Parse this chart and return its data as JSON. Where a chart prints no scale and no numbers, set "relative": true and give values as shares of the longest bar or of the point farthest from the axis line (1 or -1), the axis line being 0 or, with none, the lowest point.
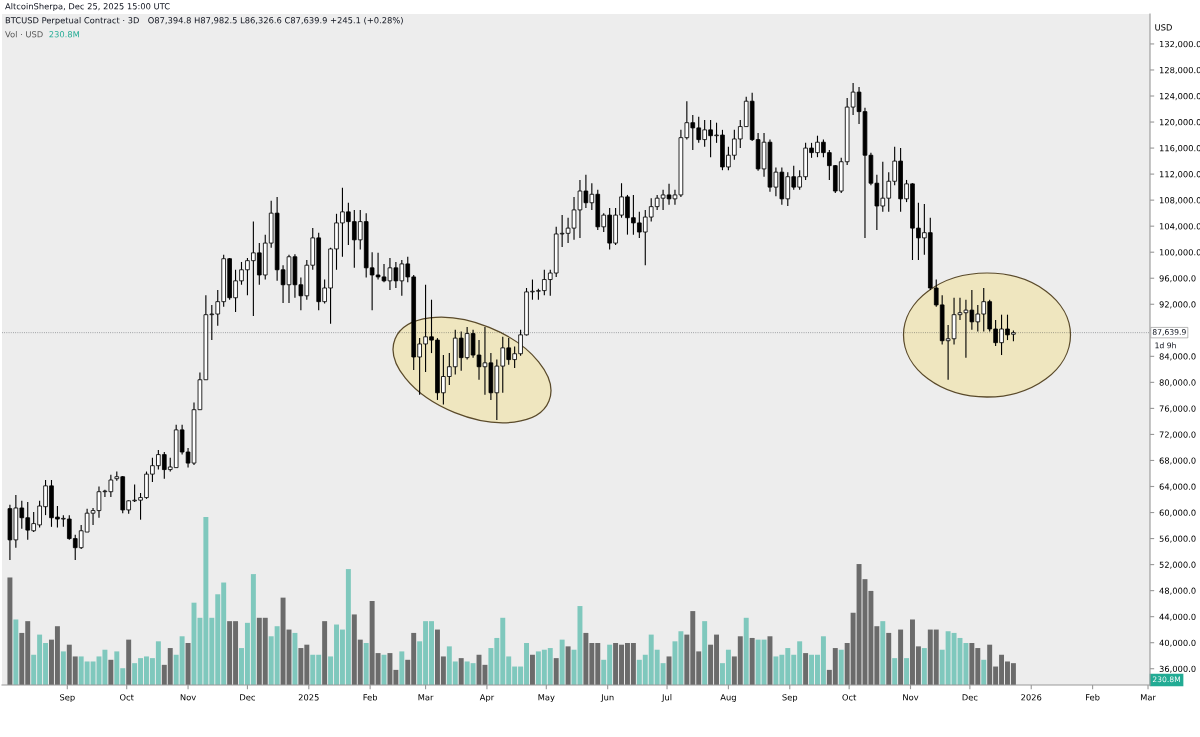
{
  "chart_data": [
    {
      "type": "candlestick",
      "title": "BTCUSD Perpetual Contract · 3D",
      "subtitle": "O87,394.8 H87,982.5 L86,326.6 C87,639.9 +245.1 (+0.28%)",
      "ylabel": "USD",
      "annotations": [
        "AltcoinSherpa, Dec 25, 2025 15:00 UTC",
        "1d 9h"
      ],
      "ref_lines": [
        {
          "axis": "y",
          "value": 87639.9,
          "label": "87,639.9",
          "color": "#131722",
          "line_style": "dotted"
        }
      ],
      "color": "#000000",
      "x": [
        "2024-08-03",
        "2024-08-06",
        "2024-08-09",
        "2024-08-12",
        "2024-08-15",
        "2024-08-18",
        "2024-08-21",
        "2024-08-24",
        "2024-08-27",
        "2024-08-30",
        "2024-09-02",
        "2024-09-05",
        "2024-09-08",
        "2024-09-11",
        "2024-09-14",
        "2024-09-17",
        "2024-09-20",
        "2024-09-23",
        "2024-09-26",
        "2024-09-29",
        "2024-10-02",
        "2024-10-05",
        "2024-10-08",
        "2024-10-11",
        "2024-10-14",
        "2024-10-17",
        "2024-10-20",
        "2024-10-23",
        "2024-10-26",
        "2024-10-29",
        "2024-11-01",
        "2024-11-04",
        "2024-11-07",
        "2024-11-10",
        "2024-11-13",
        "2024-11-16",
        "2024-11-19",
        "2024-11-22",
        "2024-11-25",
        "2024-11-28",
        "2024-12-01",
        "2024-12-04",
        "2024-12-07",
        "2024-12-10",
        "2024-12-13",
        "2024-12-16",
        "2024-12-19",
        "2024-12-22",
        "2024-12-25",
        "2024-12-28",
        "2024-12-31",
        "2025-01-03",
        "2025-01-06",
        "2025-01-09",
        "2025-01-12",
        "2025-01-15",
        "2025-01-18",
        "2025-01-21",
        "2025-01-24",
        "2025-01-27",
        "2025-01-30",
        "2025-02-02",
        "2025-02-05",
        "2025-02-08",
        "2025-02-11",
        "2025-02-14",
        "2025-02-17",
        "2025-02-20",
        "2025-02-23",
        "2025-02-26",
        "2025-03-01",
        "2025-03-04",
        "2025-03-07",
        "2025-03-10",
        "2025-03-13",
        "2025-03-16",
        "2025-03-19",
        "2025-03-22",
        "2025-03-25",
        "2025-03-28",
        "2025-03-31",
        "2025-04-03",
        "2025-04-06",
        "2025-04-09",
        "2025-04-12",
        "2025-04-15",
        "2025-04-18",
        "2025-04-21",
        "2025-04-24",
        "2025-04-27",
        "2025-04-30",
        "2025-05-03",
        "2025-05-06",
        "2025-05-09",
        "2025-05-12",
        "2025-05-15",
        "2025-05-18",
        "2025-05-21",
        "2025-05-24",
        "2025-05-27",
        "2025-05-30",
        "2025-06-02",
        "2025-06-05",
        "2025-06-08",
        "2025-06-11",
        "2025-06-14",
        "2025-06-17",
        "2025-06-20",
        "2025-06-23",
        "2025-06-26",
        "2025-06-29",
        "2025-07-02",
        "2025-07-05",
        "2025-07-08",
        "2025-07-11",
        "2025-07-14",
        "2025-07-17",
        "2025-07-20",
        "2025-07-23",
        "2025-07-26",
        "2025-07-29",
        "2025-08-01",
        "2025-08-04",
        "2025-08-07",
        "2025-08-10",
        "2025-08-13",
        "2025-08-16",
        "2025-08-19",
        "2025-08-22",
        "2025-08-25",
        "2025-08-28",
        "2025-08-31",
        "2025-09-03",
        "2025-09-06",
        "2025-09-09",
        "2025-09-12",
        "2025-09-15",
        "2025-09-18",
        "2025-09-21",
        "2025-09-24",
        "2025-09-27",
        "2025-09-30",
        "2025-10-03",
        "2025-10-06",
        "2025-10-09",
        "2025-10-12",
        "2025-10-15",
        "2025-10-18",
        "2025-10-21",
        "2025-10-24",
        "2025-10-27",
        "2025-10-30",
        "2025-11-02",
        "2025-11-05",
        "2025-11-08",
        "2025-11-11",
        "2025-11-14",
        "2025-11-17",
        "2025-11-20",
        "2025-11-23",
        "2025-11-26",
        "2025-11-29",
        "2025-12-02",
        "2025-12-05",
        "2025-12-08",
        "2025-12-11",
        "2025-12-14",
        "2025-12-17",
        "2025-12-20",
        "2025-12-23"
      ],
      "ohlc": [
        [
          60600,
          61200,
          52700,
          55800
        ],
        [
          55800,
          62700,
          54600,
          60700
        ],
        [
          60700,
          61800,
          57500,
          59200
        ],
        [
          59200,
          61600,
          55800,
          57300
        ],
        [
          57200,
          60100,
          57000,
          58300
        ],
        [
          58100,
          61800,
          57700,
          61000
        ],
        [
          60900,
          65000,
          59600,
          64100
        ],
        [
          64100,
          65000,
          57800,
          59200
        ],
        [
          59300,
          61000,
          57700,
          59000
        ],
        [
          59000,
          59600,
          57800,
          59100
        ],
        [
          59000,
          59600,
          55800,
          56000
        ],
        [
          56000,
          56600,
          52700,
          54600
        ],
        [
          54600,
          58100,
          54400,
          57200
        ],
        [
          57000,
          60600,
          57000,
          59900
        ],
        [
          59900,
          60700,
          58100,
          60300
        ],
        [
          60300,
          64000,
          59200,
          63200
        ],
        [
          63200,
          63500,
          62400,
          63300
        ],
        [
          63200,
          65800,
          62400,
          65000
        ],
        [
          65200,
          66300,
          64900,
          65500
        ],
        [
          65500,
          65600,
          59900,
          60400
        ],
        [
          60400,
          61900,
          59800,
          61800
        ],
        [
          61800,
          64300,
          61600,
          61900
        ],
        [
          61900,
          63000,
          58900,
          62300
        ],
        [
          62300,
          66300,
          62100,
          65900
        ],
        [
          65900,
          68400,
          64700,
          67200
        ],
        [
          67200,
          69600,
          66600,
          68900
        ],
        [
          68900,
          69300,
          65200,
          66600
        ],
        [
          66600,
          68400,
          66300,
          67000
        ],
        [
          66900,
          73500,
          66900,
          72700
        ],
        [
          72700,
          73500,
          68900,
          69300
        ],
        [
          69300,
          69900,
          66900,
          67600
        ],
        [
          67600,
          76900,
          67300,
          75800
        ],
        [
          75800,
          81500,
          75800,
          80400
        ],
        [
          80400,
          93400,
          80400,
          90400
        ],
        [
          90400,
          91900,
          86500,
          90500
        ],
        [
          90500,
          94200,
          88700,
          92400
        ],
        [
          92400,
          99600,
          91600,
          99000
        ],
        [
          99000,
          99100,
          92700,
          93000
        ],
        [
          93000,
          97300,
          90800,
          95600
        ],
        [
          95600,
          98500,
          95000,
          97300
        ],
        [
          97300,
          99100,
          93400,
          98700
        ],
        [
          98700,
          104700,
          90200,
          99900
        ],
        [
          99900,
          101400,
          95000,
          96500
        ],
        [
          96500,
          102700,
          95800,
          101400
        ],
        [
          101400,
          107900,
          100700,
          106000
        ],
        [
          106000,
          108500,
          95600,
          97300
        ],
        [
          97300,
          98000,
          92200,
          95000
        ],
        [
          95000,
          99600,
          92200,
          99300
        ],
        [
          99300,
          99700,
          93000,
          95000
        ],
        [
          95000,
          96100,
          91100,
          93300
        ],
        [
          93300,
          98800,
          92700,
          98000
        ],
        [
          98000,
          103700,
          97300,
          102200
        ],
        [
          102200,
          103000,
          91100,
          92400
        ],
        [
          92400,
          95800,
          92100,
          94500
        ],
        [
          94500,
          100700,
          89000,
          100500
        ],
        [
          100500,
          105900,
          97300,
          104500
        ],
        [
          104500,
          109900,
          99300,
          106200
        ],
        [
          106200,
          107600,
          101100,
          104700
        ],
        [
          104700,
          106500,
          97600,
          101900
        ],
        [
          101900,
          106500,
          100400,
          104700
        ],
        [
          104700,
          106000,
          96100,
          97600
        ],
        [
          97600,
          100000,
          91100,
          96500
        ],
        [
          96500,
          99900,
          95800,
          96200
        ],
        [
          96200,
          98200,
          95400,
          95600
        ],
        [
          95600,
          99100,
          94200,
          97600
        ],
        [
          97600,
          98500,
          94500,
          95600
        ],
        [
          95600,
          98800,
          93300,
          98200
        ],
        [
          98200,
          99300,
          95400,
          96200
        ],
        [
          96200,
          96500,
          81900,
          83900
        ],
        [
          83900,
          86800,
          78100,
          85900
        ],
        [
          85900,
          95000,
          81600,
          87000
        ],
        [
          87000,
          92700,
          84500,
          86500
        ],
        [
          86500,
          86800,
          77300,
          78400
        ],
        [
          78400,
          84200,
          76600,
          80900
        ],
        [
          80900,
          84500,
          79600,
          82400
        ],
        [
          82400,
          88100,
          81200,
          86800
        ],
        [
          86800,
          87800,
          81800,
          83800
        ],
        [
          83800,
          88500,
          83500,
          87500
        ],
        [
          87500,
          88100,
          83800,
          84200
        ],
        [
          84200,
          86500,
          80400,
          82400
        ],
        [
          82400,
          88500,
          78100,
          83000
        ],
        [
          83000,
          84500,
          77300,
          78400
        ],
        [
          78400,
          83500,
          74200,
          82500
        ],
        [
          82500,
          87000,
          78400,
          85300
        ],
        [
          85300,
          86800,
          82700,
          83500
        ],
        [
          83500,
          85500,
          82200,
          84400
        ],
        [
          84400,
          88100,
          84100,
          87300
        ],
        [
          87300,
          94500,
          87200,
          93900
        ],
        [
          93900,
          95800,
          92700,
          94000
        ],
        [
          94000,
          94400,
          92700,
          94100
        ],
        [
          94100,
          97300,
          93400,
          95800
        ],
        [
          95800,
          97300,
          93300,
          96800
        ],
        [
          96800,
          103900,
          96200,
          102800
        ],
        [
          102800,
          105700,
          100800,
          102900
        ],
        [
          102900,
          105300,
          101400,
          103700
        ],
        [
          103700,
          108500,
          101900,
          106500
        ],
        [
          106500,
          111100,
          102200,
          109400
        ],
        [
          109400,
          111900,
          106800,
          107600
        ],
        [
          107600,
          110600,
          106500,
          108900
        ],
        [
          108900,
          109600,
          103400,
          103900
        ],
        [
          103900,
          106000,
          103100,
          105700
        ],
        [
          105700,
          106800,
          100400,
          101400
        ],
        [
          101400,
          106800,
          101100,
          105700
        ],
        [
          105700,
          110600,
          105300,
          108500
        ],
        [
          108500,
          108800,
          102700,
          105300
        ],
        [
          105300,
          108800,
          102700,
          104500
        ],
        [
          104500,
          106200,
          102200,
          103100
        ],
        [
          103100,
          106500,
          98000,
          105400
        ],
        [
          105400,
          108300,
          104700,
          107000
        ],
        [
          107000,
          108800,
          106500,
          108300
        ],
        [
          108300,
          109600,
          106500,
          108800
        ],
        [
          108800,
          110500,
          107300,
          108200
        ],
        [
          108200,
          109600,
          107300,
          108800
        ],
        [
          108800,
          118800,
          108500,
          117600
        ],
        [
          117600,
          123200,
          117300,
          119900
        ],
        [
          119900,
          121100,
          115700,
          119100
        ],
        [
          119100,
          120800,
          116800,
          117300
        ],
        [
          117300,
          120300,
          116200,
          118800
        ],
        [
          118800,
          120300,
          114600,
          117900
        ],
        [
          117900,
          119900,
          116800,
          118000
        ],
        [
          118000,
          118800,
          112600,
          113100
        ],
        [
          113100,
          116200,
          112600,
          114900
        ],
        [
          114900,
          118800,
          114200,
          117400
        ],
        [
          117400,
          120300,
          116000,
          119300
        ],
        [
          119300,
          123900,
          119300,
          123200
        ],
        [
          123200,
          124500,
          117100,
          117300
        ],
        [
          117300,
          118300,
          112500,
          112800
        ],
        [
          112800,
          118300,
          111600,
          116900
        ],
        [
          116900,
          117300,
          109300,
          110000
        ],
        [
          110000,
          113000,
          108600,
          112300
        ],
        [
          112300,
          113000,
          107300,
          108200
        ],
        [
          108200,
          112300,
          107100,
          111600
        ],
        [
          111600,
          113300,
          109600,
          110000
        ],
        [
          110000,
          112600,
          109600,
          111600
        ],
        [
          111600,
          116800,
          111100,
          116000
        ],
        [
          116000,
          116800,
          114500,
          115300
        ],
        [
          115300,
          117900,
          114600,
          116900
        ],
        [
          116900,
          117300,
          114600,
          115300
        ],
        [
          115300,
          115700,
          111100,
          113300
        ],
        [
          113300,
          113400,
          109100,
          109400
        ],
        [
          109400,
          114500,
          109100,
          113900
        ],
        [
          113900,
          123700,
          113400,
          122300
        ],
        [
          122300,
          126000,
          121100,
          124600
        ],
        [
          124600,
          125400,
          119700,
          121600
        ],
        [
          121600,
          122200,
          102200,
          114900
        ],
        [
          114900,
          115300,
          110300,
          110600
        ],
        [
          110600,
          111900,
          103400,
          107100
        ],
        [
          107100,
          113900,
          106200,
          108300
        ],
        [
          108300,
          112300,
          106200,
          110900
        ],
        [
          110900,
          116200,
          110300,
          114000
        ],
        [
          114000,
          116000,
          106200,
          108200
        ],
        [
          108200,
          111100,
          107700,
          110500
        ],
        [
          110500,
          110600,
          98800,
          103700
        ],
        [
          103700,
          107600,
          98800,
          102200
        ],
        [
          102200,
          107400,
          99600,
          103000
        ],
        [
          103000,
          105300,
          94200,
          94500
        ],
        [
          94500,
          95800,
          91600,
          91900
        ],
        [
          91900,
          93400,
          85800,
          86400
        ],
        [
          86400,
          88800,
          80400,
          86700
        ],
        [
          86700,
          93000,
          85800,
          90400
        ],
        [
          90400,
          93000,
          89600,
          90700
        ],
        [
          90700,
          92700,
          83800,
          91100
        ],
        [
          91100,
          94200,
          88100,
          89300
        ],
        [
          89300,
          91900,
          87800,
          90500
        ],
        [
          90500,
          94500,
          87800,
          92400
        ],
        [
          92400,
          92700,
          87800,
          88200
        ],
        [
          88200,
          89600,
          85600,
          86100
        ],
        [
          86100,
          90400,
          84200,
          88200
        ],
        [
          88200,
          90400,
          86500,
          87300
        ],
        [
          87394.8,
          87982.5,
          86326.6,
          87639.9
        ]
      ],
      "xlim": [
        "2024-07-30",
        "2026-03-02"
      ],
      "xticks": [
        {
          "value": "2024-09-01",
          "label": "Sep"
        },
        {
          "value": "2024-10-01",
          "label": "Oct"
        },
        {
          "value": "2024-11-01",
          "label": "Nov"
        },
        {
          "value": "2024-12-01",
          "label": "Dec"
        },
        {
          "value": "2025-01-01",
          "label": "2025"
        },
        {
          "value": "2025-02-01",
          "label": "Feb"
        },
        {
          "value": "2025-03-01",
          "label": "Mar"
        },
        {
          "value": "2025-04-01",
          "label": "Apr"
        },
        {
          "value": "2025-05-01",
          "label": "May"
        },
        {
          "value": "2025-06-01",
          "label": "Jun"
        },
        {
          "value": "2025-07-01",
          "label": "Jul"
        },
        {
          "value": "2025-08-01",
          "label": "Aug"
        },
        {
          "value": "2025-09-01",
          "label": "Sep"
        },
        {
          "value": "2025-10-01",
          "label": "Oct"
        },
        {
          "value": "2025-11-01",
          "label": "Nov"
        },
        {
          "value": "2025-12-01",
          "label": "Dec"
        },
        {
          "value": "2026-01-01",
          "label": "2026"
        },
        {
          "value": "2026-02-01",
          "label": "Feb"
        },
        {
          "value": "2026-03-01",
          "label": "Mar"
        }
      ],
      "ylim": [
        33500,
        136600
      ],
      "yticks": [
        {
          "value": 36000,
          "label": "36,000.0"
        },
        {
          "value": 40000,
          "label": "40,000.0"
        },
        {
          "value": 44000,
          "label": "44,000.0"
        },
        {
          "value": 48000,
          "label": "48,000.0"
        },
        {
          "value": 52000,
          "label": "52,000.0"
        },
        {
          "value": 56000,
          "label": "56,000.0"
        },
        {
          "value": 60000,
          "label": "60,000.0"
        },
        {
          "value": 64000,
          "label": "64,000.0"
        },
        {
          "value": 68000,
          "label": "68,000.0"
        },
        {
          "value": 72000,
          "label": "72,000.0"
        },
        {
          "value": 76000,
          "label": "76,000.0"
        },
        {
          "value": 80000,
          "label": "80,000.0"
        },
        {
          "value": 84000,
          "label": "84,000.0"
        },
        {
          "value": 88000,
          "label": null
        },
        {
          "value": 92000,
          "label": "92,000.0"
        },
        {
          "value": 96000,
          "label": "96,000.0"
        },
        {
          "value": 100000,
          "label": "100,000.0"
        },
        {
          "value": 104000,
          "label": "104,000.0"
        },
        {
          "value": 108000,
          "label": "108,000.0"
        },
        {
          "value": 112000,
          "label": "112,000.0"
        },
        {
          "value": 116000,
          "label": "116,000.0"
        },
        {
          "value": 120000,
          "label": "120,000.0"
        },
        {
          "value": 124000,
          "label": "124,000.0"
        },
        {
          "value": 128000,
          "label": "128,000.0"
        },
        {
          "value": 132000,
          "label": "132,000.0"
        }
      ]
    },
    {
      "type": "bar",
      "title": "Vol · USD",
      "annotations": [
        "230.8M",
        "230.8M"
      ],
      "relative": true,
      "tick_labels": false,
      "x": [
        "2024-08-03",
        "2024-08-06",
        "2024-08-09",
        "2024-08-12",
        "2024-08-15",
        "2024-08-18",
        "2024-08-21",
        "2024-08-24",
        "2024-08-27",
        "2024-08-30",
        "2024-09-02",
        "2024-09-05",
        "2024-09-08",
        "2024-09-11",
        "2024-09-14",
        "2024-09-17",
        "2024-09-20",
        "2024-09-23",
        "2024-09-26",
        "2024-09-29",
        "2024-10-02",
        "2024-10-05",
        "2024-10-08",
        "2024-10-11",
        "2024-10-14",
        "2024-10-17",
        "2024-10-20",
        "2024-10-23",
        "2024-10-26",
        "2024-10-29",
        "2024-11-01",
        "2024-11-04",
        "2024-11-07",
        "2024-11-10",
        "2024-11-13",
        "2024-11-16",
        "2024-11-19",
        "2024-11-22",
        "2024-11-25",
        "2024-11-28",
        "2024-12-01",
        "2024-12-04",
        "2024-12-07",
        "2024-12-10",
        "2024-12-13",
        "2024-12-16",
        "2024-12-19",
        "2024-12-22",
        "2024-12-25",
        "2024-12-28",
        "2024-12-31",
        "2025-01-03",
        "2025-01-06",
        "2025-01-09",
        "2025-01-12",
        "2025-01-15",
        "2025-01-18",
        "2025-01-21",
        "2025-01-24",
        "2025-01-27",
        "2025-01-30",
        "2025-02-02",
        "2025-02-05",
        "2025-02-08",
        "2025-02-11",
        "2025-02-14",
        "2025-02-17",
        "2025-02-20",
        "2025-02-23",
        "2025-02-26",
        "2025-03-01",
        "2025-03-04",
        "2025-03-07",
        "2025-03-10",
        "2025-03-13",
        "2025-03-16",
        "2025-03-19",
        "2025-03-22",
        "2025-03-25",
        "2025-03-28",
        "2025-03-31",
        "2025-04-03",
        "2025-04-06",
        "2025-04-09",
        "2025-04-12",
        "2025-04-15",
        "2025-04-18",
        "2025-04-21",
        "2025-04-24",
        "2025-04-27",
        "2025-04-30",
        "2025-05-03",
        "2025-05-06",
        "2025-05-09",
        "2025-05-12",
        "2025-05-15",
        "2025-05-18",
        "2025-05-21",
        "2025-05-24",
        "2025-05-27",
        "2025-05-30",
        "2025-06-02",
        "2025-06-05",
        "2025-06-08",
        "2025-06-11",
        "2025-06-14",
        "2025-06-17",
        "2025-06-20",
        "2025-06-23",
        "2025-06-26",
        "2025-06-29",
        "2025-07-02",
        "2025-07-05",
        "2025-07-08",
        "2025-07-11",
        "2025-07-14",
        "2025-07-17",
        "2025-07-20",
        "2025-07-23",
        "2025-07-26",
        "2025-07-29",
        "2025-08-01",
        "2025-08-04",
        "2025-08-07",
        "2025-08-10",
        "2025-08-13",
        "2025-08-16",
        "2025-08-19",
        "2025-08-22",
        "2025-08-25",
        "2025-08-28",
        "2025-08-31",
        "2025-09-03",
        "2025-09-06",
        "2025-09-09",
        "2025-09-12",
        "2025-09-15",
        "2025-09-18",
        "2025-09-21",
        "2025-09-24",
        "2025-09-27",
        "2025-09-30",
        "2025-10-03",
        "2025-10-06",
        "2025-10-09",
        "2025-10-12",
        "2025-10-15",
        "2025-10-18",
        "2025-10-21",
        "2025-10-24",
        "2025-10-27",
        "2025-10-30",
        "2025-11-02",
        "2025-11-05",
        "2025-11-08",
        "2025-11-11",
        "2025-11-14",
        "2025-11-17",
        "2025-11-20",
        "2025-11-23",
        "2025-11-26",
        "2025-11-29",
        "2025-12-02",
        "2025-12-05",
        "2025-12-08",
        "2025-12-11",
        "2025-12-14",
        "2025-12-17",
        "2025-12-20",
        "2025-12-23"
      ],
      "xlim": [
        "2024-07-30",
        "2026-03-02"
      ],
      "values": [
        0.64,
        0.39,
        0.31,
        0.38,
        0.18,
        0.3,
        0.25,
        0.27,
        0.35,
        0.2,
        0.24,
        0.17,
        0.17,
        0.14,
        0.14,
        0.17,
        0.21,
        0.15,
        0.2,
        0.1,
        0.27,
        0.13,
        0.16,
        0.17,
        0.16,
        0.26,
        0.12,
        0.22,
        0.18,
        0.29,
        0.25,
        0.49,
        0.4,
        1,
        0.4,
        0.54,
        0.61,
        0.38,
        0.38,
        0.22,
        0.37,
        0.66,
        0.4,
        0.4,
        0.29,
        0.35,
        0.52,
        0.33,
        0.31,
        0.22,
        0.24,
        0.18,
        0.18,
        0.38,
        0.17,
        0.36,
        0.33,
        0.69,
        0.42,
        0.27,
        0.25,
        0.5,
        0.19,
        0.18,
        0.19,
        0.09,
        0.2,
        0.15,
        0.31,
        0.26,
        0.38,
        0.38,
        0.33,
        0.17,
        0.23,
        0.14,
        0.16,
        0.14,
        0.13,
        0.18,
        0.12,
        0.22,
        0.28,
        0.4,
        0.17,
        0.11,
        0.11,
        0.25,
        0.18,
        0.2,
        0.21,
        0.22,
        0.16,
        0.27,
        0.23,
        0.21,
        0.47,
        0.31,
        0.25,
        0.25,
        0.15,
        0.24,
        0.25,
        0.24,
        0.25,
        0.25,
        0.15,
        0.18,
        0.3,
        0.21,
        0.13,
        0.17,
        0.26,
        0.32,
        0.3,
        0.44,
        0.2,
        0.38,
        0.24,
        0.3,
        0.13,
        0.21,
        0.17,
        0.29,
        0.4,
        0.28,
        0.27,
        0.27,
        0.29,
        0.17,
        0.18,
        0.22,
        0.18,
        0.26,
        0.19,
        0.18,
        0.18,
        0.29,
        0.09,
        0.22,
        0.21,
        0.25,
        0.43,
        0.72,
        0.63,
        0.56,
        0.35,
        0.38,
        0.31,
        0.16,
        0.33,
        0.16,
        0.39,
        0.23,
        0.22,
        0.33,
        0.33,
        0.21,
        0.32,
        0.31,
        0.28,
        0.25,
        0.25,
        0.22,
        0.15,
        0.24,
        0.11,
        0.18,
        0.14,
        0.13
      ],
      "colors": [
        "#6b6b6b",
        "#7fc8bd",
        "#6b6b6b",
        "#6b6b6b",
        "#7fc8bd",
        "#7fc8bd",
        "#7fc8bd",
        "#6b6b6b",
        "#6b6b6b",
        "#7fc8bd",
        "#6b6b6b",
        "#6b6b6b",
        "#7fc8bd",
        "#7fc8bd",
        "#7fc8bd",
        "#7fc8bd",
        "#7fc8bd",
        "#6b6b6b",
        "#7fc8bd",
        "#7fc8bd",
        "#6b6b6b",
        "#7fc8bd",
        "#7fc8bd",
        "#7fc8bd",
        "#7fc8bd",
        "#7fc8bd",
        "#6b6b6b",
        "#6b6b6b",
        "#7fc8bd",
        "#7fc8bd",
        "#6b6b6b",
        "#7fc8bd",
        "#7fc8bd",
        "#7fc8bd",
        "#7fc8bd",
        "#7fc8bd",
        "#7fc8bd",
        "#6b6b6b",
        "#6b6b6b",
        "#7fc8bd",
        "#7fc8bd",
        "#7fc8bd",
        "#6b6b6b",
        "#6b6b6b",
        "#7fc8bd",
        "#7fc8bd",
        "#6b6b6b",
        "#6b6b6b",
        "#7fc8bd",
        "#6b6b6b",
        "#6b6b6b",
        "#7fc8bd",
        "#7fc8bd",
        "#6b6b6b",
        "#7fc8bd",
        "#7fc8bd",
        "#7fc8bd",
        "#7fc8bd",
        "#6b6b6b",
        "#6b6b6b",
        "#7fc8bd",
        "#6b6b6b",
        "#6b6b6b",
        "#7fc8bd",
        "#6b6b6b",
        "#6b6b6b",
        "#7fc8bd",
        "#6b6b6b",
        "#6b6b6b",
        "#7fc8bd",
        "#7fc8bd",
        "#7fc8bd",
        "#6b6b6b",
        "#6b6b6b",
        "#7fc8bd",
        "#7fc8bd",
        "#6b6b6b",
        "#7fc8bd",
        "#7fc8bd",
        "#6b6b6b",
        "#6b6b6b",
        "#7fc8bd",
        "#7fc8bd",
        "#7fc8bd",
        "#7fc8bd",
        "#7fc8bd",
        "#7fc8bd",
        "#7fc8bd",
        "#6b6b6b",
        "#7fc8bd",
        "#7fc8bd",
        "#7fc8bd",
        "#6b6b6b",
        "#7fc8bd",
        "#6b6b6b",
        "#7fc8bd",
        "#7fc8bd",
        "#6b6b6b",
        "#6b6b6b",
        "#6b6b6b",
        "#7fc8bd",
        "#7fc8bd",
        "#6b6b6b",
        "#6b6b6b",
        "#6b6b6b",
        "#6b6b6b",
        "#7fc8bd",
        "#7fc8bd",
        "#7fc8bd",
        "#7fc8bd",
        "#7fc8bd",
        "#6b6b6b",
        "#7fc8bd",
        "#7fc8bd",
        "#6b6b6b",
        "#6b6b6b",
        "#6b6b6b",
        "#7fc8bd",
        "#6b6b6b",
        "#6b6b6b",
        "#7fc8bd",
        "#7fc8bd",
        "#6b6b6b",
        "#6b6b6b",
        "#7fc8bd",
        "#6b6b6b",
        "#7fc8bd",
        "#7fc8bd",
        "#6b6b6b",
        "#7fc8bd",
        "#7fc8bd",
        "#7fc8bd",
        "#7fc8bd",
        "#7fc8bd",
        "#6b6b6b",
        "#7fc8bd",
        "#7fc8bd",
        "#7fc8bd",
        "#6b6b6b",
        "#6b6b6b",
        "#7fc8bd",
        "#6b6b6b",
        "#6b6b6b",
        "#6b6b6b",
        "#6b6b6b",
        "#6b6b6b",
        "#6b6b6b",
        "#7fc8bd",
        "#6b6b6b",
        "#7fc8bd",
        "#6b6b6b",
        "#7fc8bd",
        "#6b6b6b",
        "#6b6b6b",
        "#7fc8bd",
        "#6b6b6b",
        "#6b6b6b",
        "#7fc8bd",
        "#7fc8bd",
        "#7fc8bd",
        "#7fc8bd",
        "#7fc8bd",
        "#6b6b6b",
        "#6b6b6b",
        "#7fc8bd",
        "#6b6b6b",
        "#6b6b6b",
        "#6b6b6b",
        "#6b6b6b",
        "#6b6b6b"
      ]
    }
  ]
}
